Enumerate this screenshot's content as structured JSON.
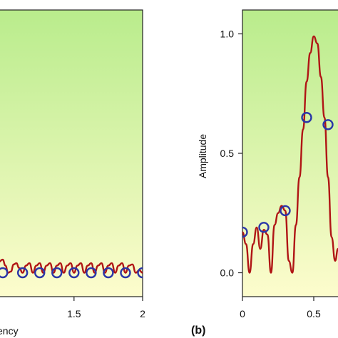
{
  "colors": {
    "background_top": "#b9ec8c",
    "background_bottom": "#fdfccd",
    "curve": "#b01515",
    "marker": "#2a36a8"
  },
  "chart_data": [
    {
      "panel_tag": "",
      "type": "line",
      "xlabel": "ency",
      "ylabel": "",
      "xlim": [
        0.95,
        2.0
      ],
      "ylim": [
        -0.1,
        1.1
      ],
      "x_ticks": [
        1.5,
        2
      ],
      "x_tick_labels": [
        "1.5",
        "2"
      ],
      "y_ticks": [],
      "series": [
        {
          "style": "line",
          "x": [
            0.95,
            0.98,
            1.0,
            1.02,
            1.04,
            1.06,
            1.08,
            1.1,
            1.125,
            1.15,
            1.175,
            1.2,
            1.225,
            1.25,
            1.275,
            1.3,
            1.325,
            1.35,
            1.375,
            1.4,
            1.425,
            1.45,
            1.475,
            1.5,
            1.525,
            1.55,
            1.575,
            1.6,
            1.625,
            1.65,
            1.675,
            1.7,
            1.725,
            1.75,
            1.775,
            1.8,
            1.825,
            1.85,
            1.875,
            1.9,
            1.925,
            1.95,
            1.975,
            2.0
          ],
          "y": [
            0.045,
            0.055,
            0.03,
            0.0,
            0.005,
            0.035,
            0.04,
            0.02,
            0.0,
            0.03,
            0.04,
            0.0,
            0.03,
            0.04,
            0.0,
            0.03,
            0.04,
            0.0,
            0.03,
            0.04,
            0.0,
            0.03,
            0.04,
            0.0,
            0.03,
            0.04,
            0.0,
            0.03,
            0.04,
            0.0,
            0.03,
            0.04,
            0.0,
            0.03,
            0.04,
            0.0,
            0.03,
            0.04,
            0.0,
            0.03,
            0.035,
            0.0,
            0.01,
            0.0
          ]
        },
        {
          "style": "markers",
          "x": [
            0.98,
            1.125,
            1.25,
            1.375,
            1.5,
            1.625,
            1.75,
            1.875,
            2.0
          ],
          "y": [
            0.0,
            0.0,
            0.0,
            0.0,
            0.0,
            0.0,
            0.0,
            0.0,
            0.0
          ]
        }
      ]
    },
    {
      "panel_tag": "(b)",
      "type": "line",
      "xlabel": "",
      "ylabel": "Amplitude",
      "xlim": [
        0.0,
        0.7
      ],
      "ylim": [
        -0.1,
        1.1
      ],
      "x_ticks": [
        0,
        0.5
      ],
      "x_tick_labels": [
        "0",
        "0.5"
      ],
      "y_ticks": [
        0.0,
        0.5,
        1.0
      ],
      "y_tick_labels": [
        "0.0",
        "0.5",
        "1.0"
      ],
      "series": [
        {
          "style": "line",
          "x": [
            0.0,
            0.025,
            0.05,
            0.075,
            0.1,
            0.125,
            0.15,
            0.175,
            0.2,
            0.225,
            0.25,
            0.275,
            0.3,
            0.325,
            0.35,
            0.375,
            0.4,
            0.425,
            0.45,
            0.475,
            0.5,
            0.525,
            0.55,
            0.575,
            0.6,
            0.625,
            0.65,
            0.67
          ],
          "y": [
            0.17,
            0.12,
            0.0,
            0.12,
            0.19,
            0.1,
            0.18,
            0.16,
            0.0,
            0.2,
            0.25,
            0.28,
            0.26,
            0.05,
            0.0,
            0.2,
            0.4,
            0.6,
            0.8,
            0.92,
            0.99,
            0.96,
            0.82,
            0.65,
            0.4,
            0.15,
            0.05,
            0.1
          ]
        },
        {
          "style": "markers",
          "x": [
            0.0,
            0.15,
            0.3,
            0.45,
            0.6
          ],
          "y": [
            0.17,
            0.19,
            0.26,
            0.65,
            0.62
          ]
        }
      ]
    }
  ]
}
